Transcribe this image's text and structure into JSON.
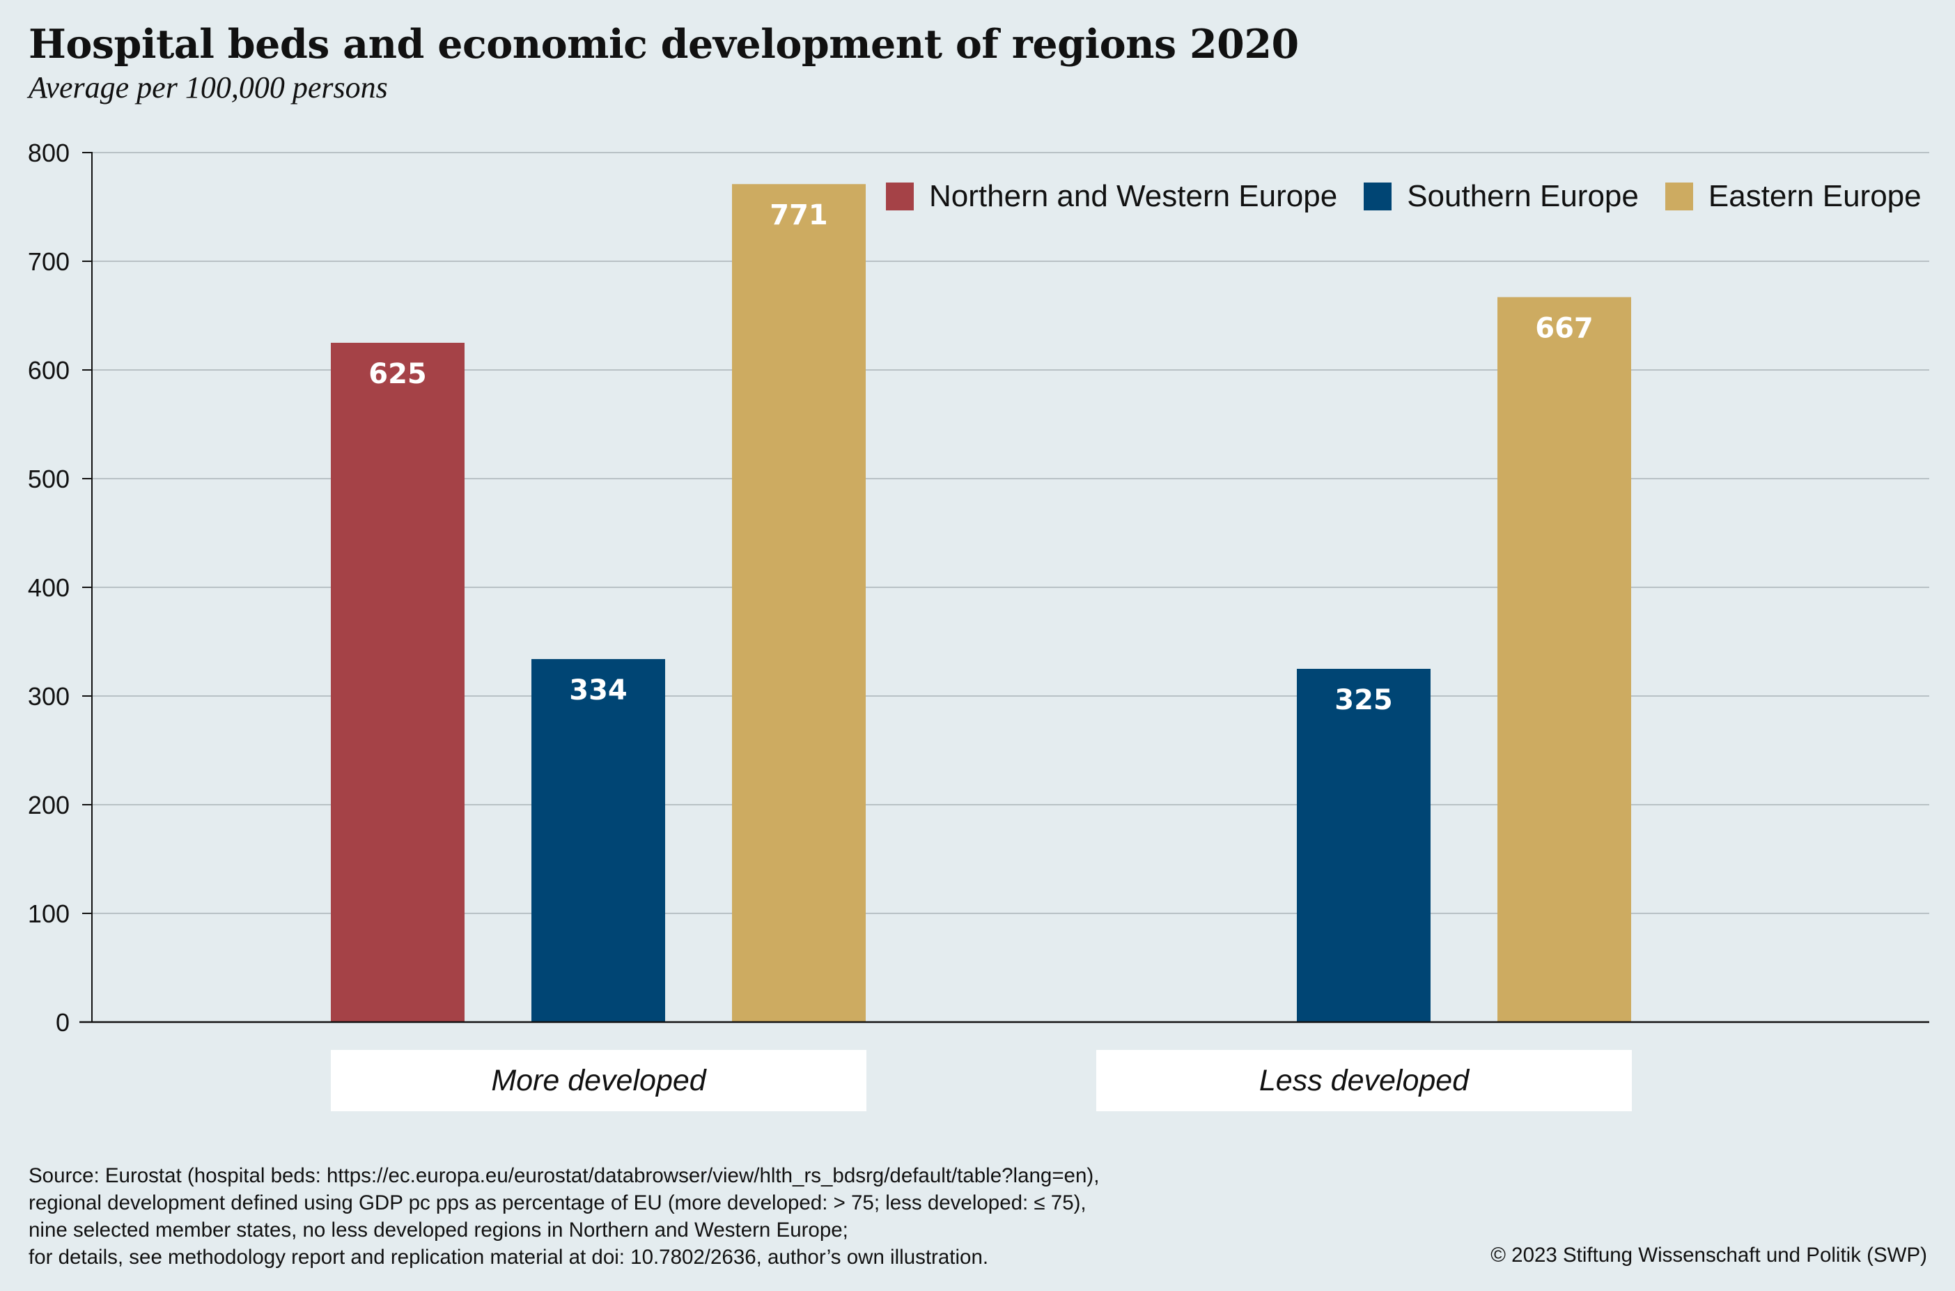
{
  "header": {
    "title": "Hospital beds and economic development of regions 2020",
    "subtitle": "Average per 100,000 persons"
  },
  "chart_data": {
    "type": "bar",
    "title": "Hospital beds and economic development of regions 2020",
    "subtitle": "Average per 100,000 persons",
    "xlabel": "",
    "ylabel": "",
    "ylim": [
      0,
      800
    ],
    "yticks": [
      0,
      100,
      200,
      300,
      400,
      500,
      600,
      700,
      800
    ],
    "grid": true,
    "legend_position": "top-right",
    "categories": [
      "More developed",
      "Less developed"
    ],
    "series": [
      {
        "name": "Northern and Western Europe",
        "color": "#a54247",
        "values": [
          625,
          null
        ]
      },
      {
        "name": "Southern Europe",
        "color": "#004574",
        "values": [
          334,
          325
        ]
      },
      {
        "name": "Eastern Europe",
        "color": "#cdab61",
        "values": [
          771,
          667
        ]
      }
    ]
  },
  "footer": {
    "source_lines": [
      "Source: Eurostat (hospital beds: https://ec.europa.eu/eurostat/databrowser/view/hlth_rs_bdsrg/default/table?lang=en),",
      "regional development defined using GDP pc pps as percentage of EU (more developed: > 75; less developed: ≤ 75),",
      "nine selected member states, no less developed regions in Northern and Western Europe;",
      "for details, see methodology report and replication material at doi: 10.7802/2636, author’s own illustration."
    ],
    "copyright": "© 2023 Stiftung Wissenschaft und Politik (SWP)"
  }
}
